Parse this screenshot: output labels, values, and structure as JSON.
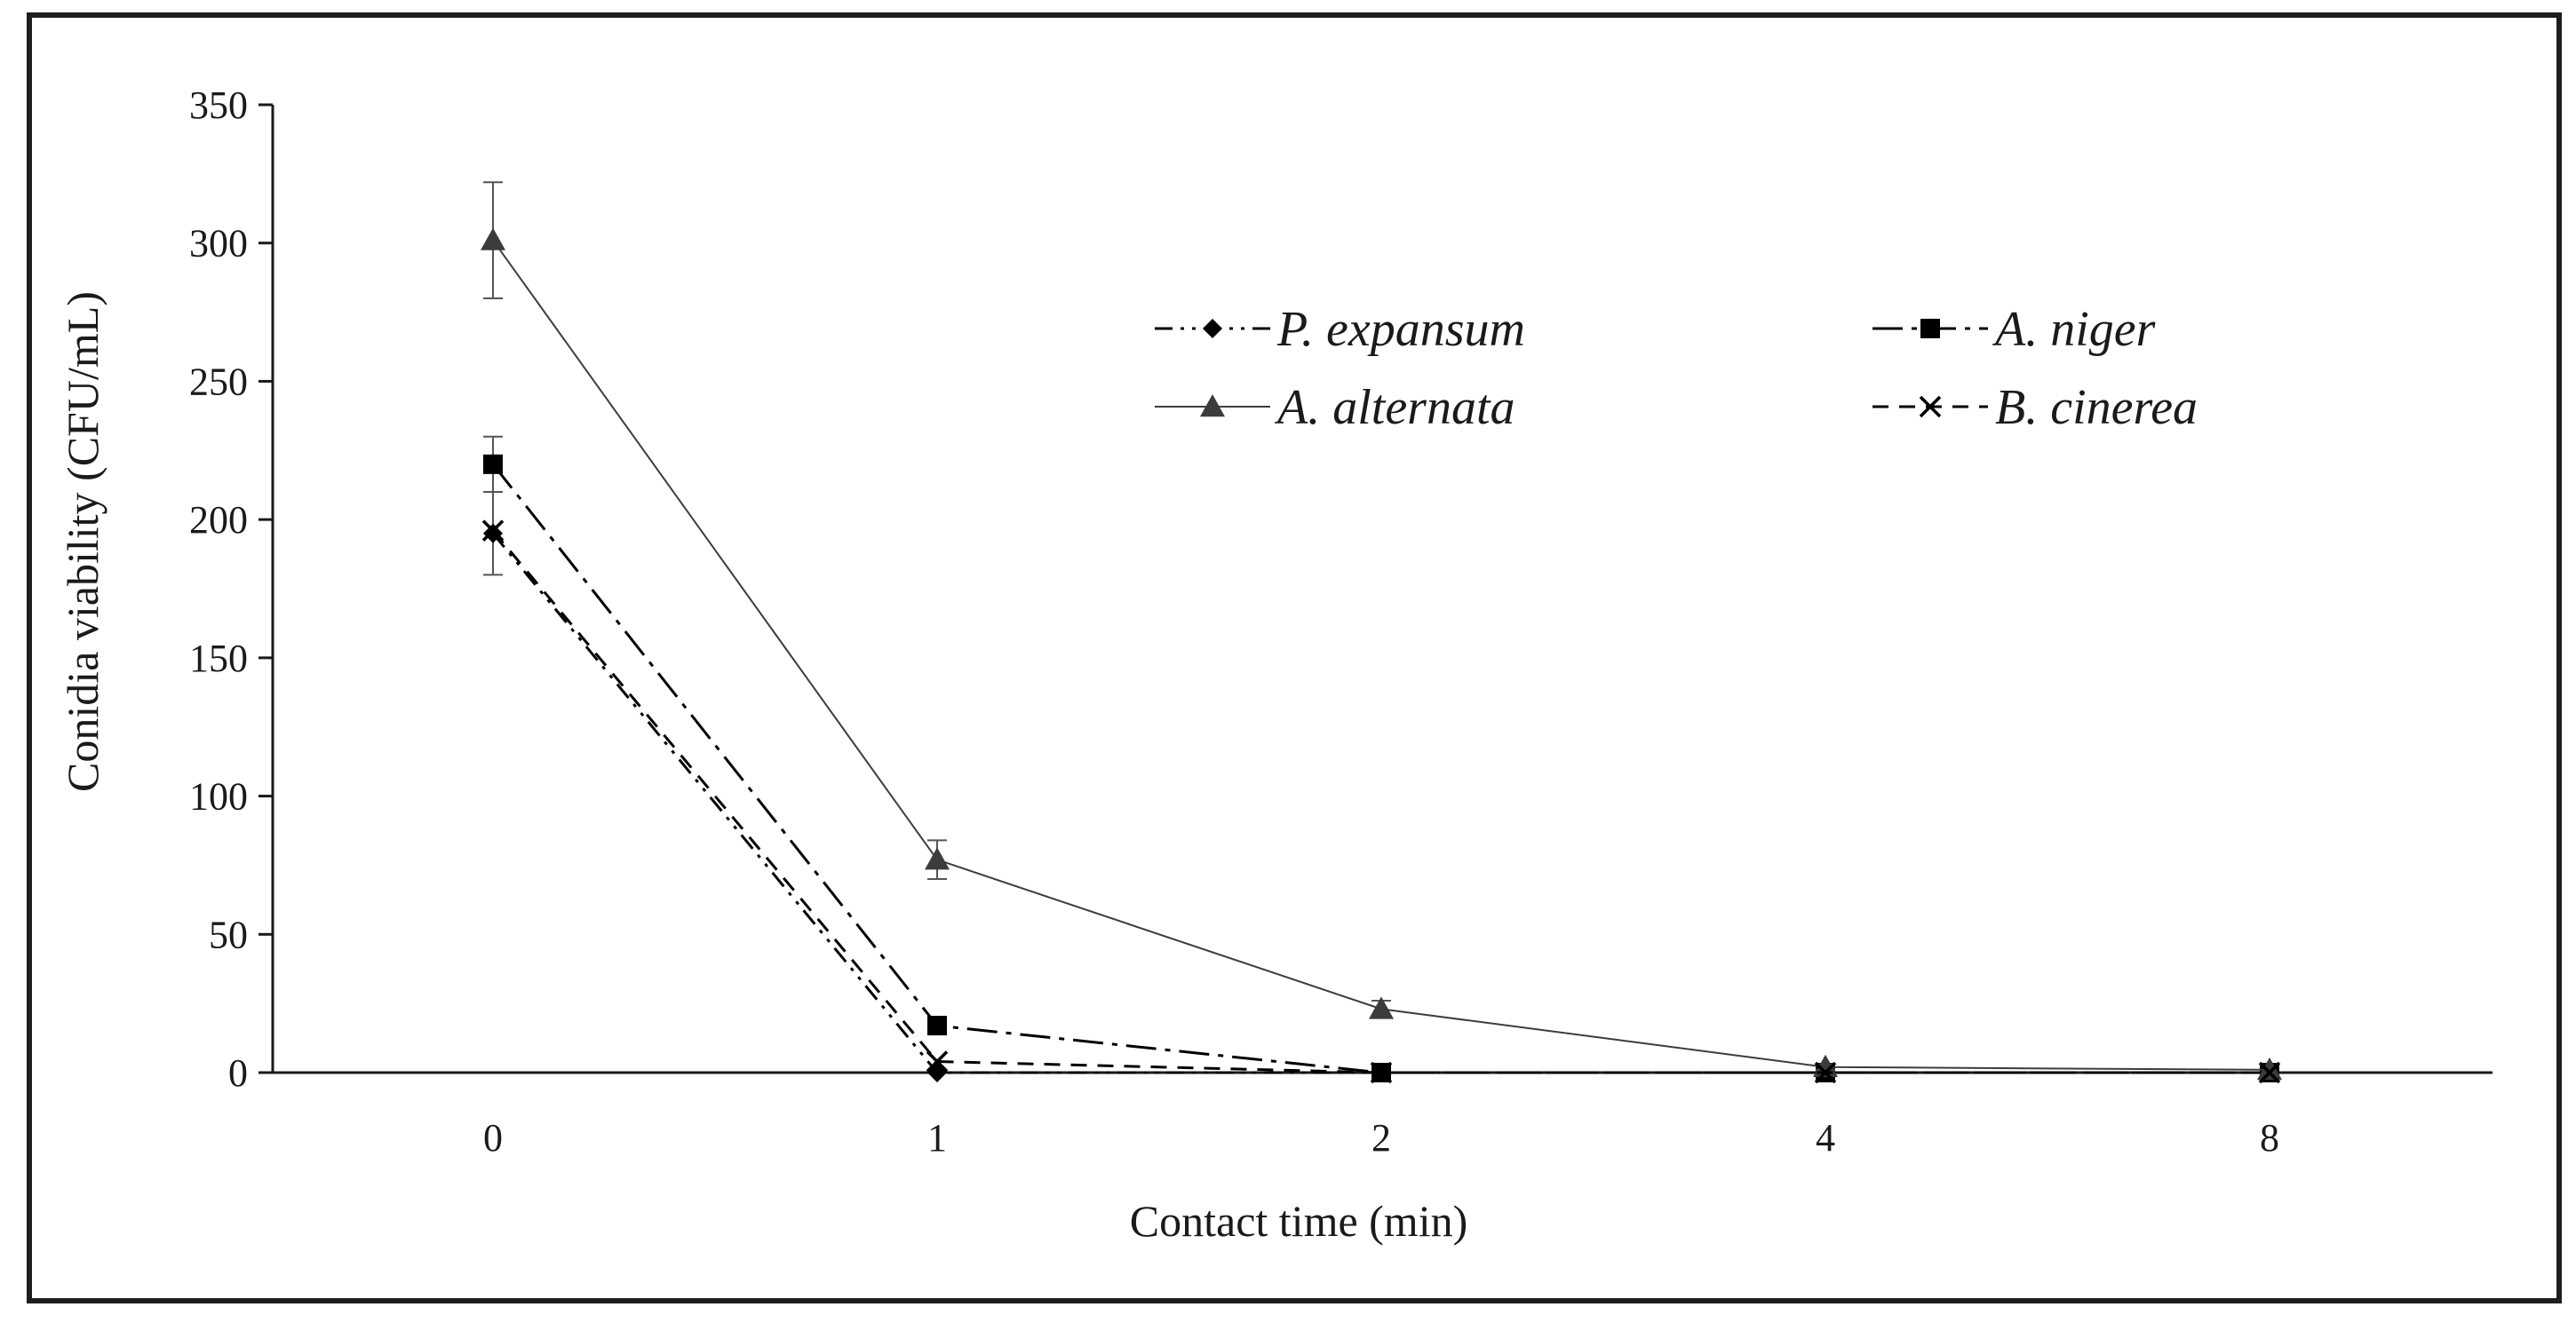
{
  "chart_data": {
    "type": "line",
    "title": "",
    "xlabel": "Contact time (min)",
    "ylabel": "Conidia viability (CFU/mL)",
    "categories": [
      "0",
      "1",
      "2",
      "4",
      "8"
    ],
    "ylim": [
      0,
      350
    ],
    "yticks": [
      0,
      50,
      100,
      150,
      200,
      250,
      300,
      350
    ],
    "grid": false,
    "legend_position": "top-right",
    "series": [
      {
        "name": "P. expansum",
        "values": [
          195,
          0,
          0,
          0,
          0
        ],
        "errors": [
          15,
          0,
          0,
          0,
          0
        ],
        "marker": "diamond",
        "dash": "dash-dot-dot",
        "color": "#000000"
      },
      {
        "name": "A. niger",
        "values": [
          220,
          17,
          0,
          0,
          0
        ],
        "errors": [
          10,
          0,
          0,
          0,
          0
        ],
        "marker": "square",
        "dash": "long-dash-dot",
        "color": "#000000"
      },
      {
        "name": "A. alternata",
        "values": [
          301,
          77,
          23,
          2,
          1
        ],
        "errors": [
          21,
          7,
          3,
          1,
          0
        ],
        "marker": "triangle",
        "dash": "solid",
        "color": "#3c3c3c"
      },
      {
        "name": "B. cinerea",
        "values": [
          196,
          4,
          0,
          0,
          0
        ],
        "errors": [
          0,
          0,
          0,
          0,
          0
        ],
        "marker": "x",
        "dash": "dash",
        "color": "#000000"
      }
    ]
  }
}
